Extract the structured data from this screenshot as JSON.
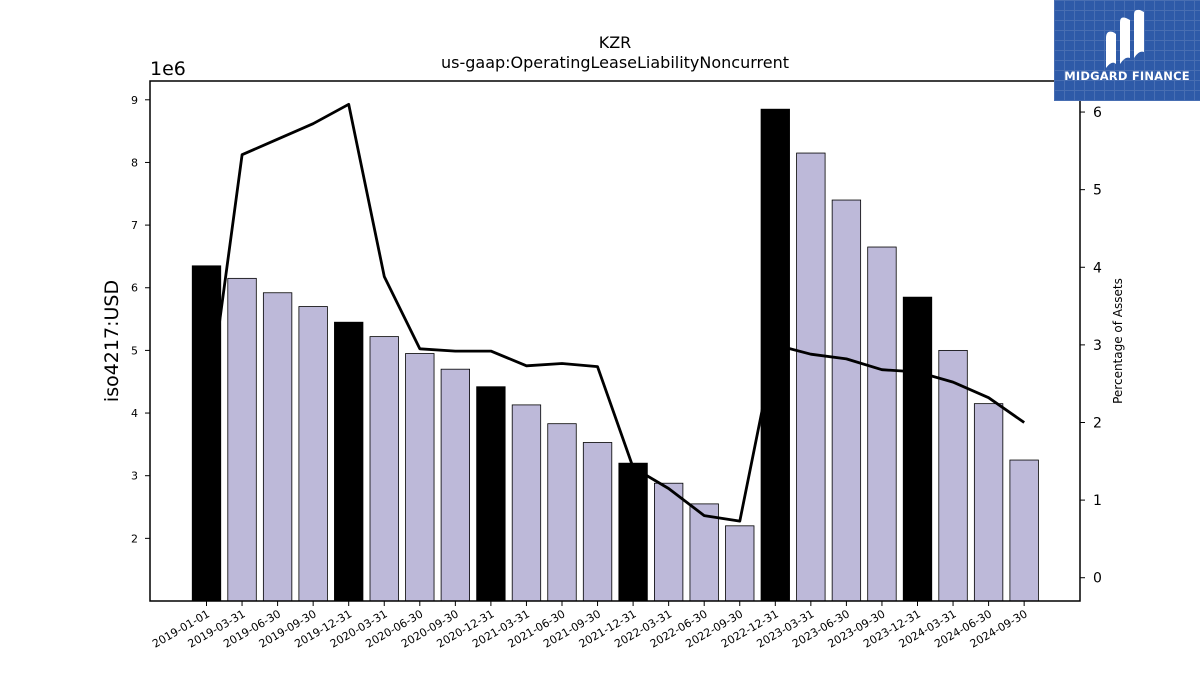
{
  "logo": {
    "text": "MIDGARD FINANCE",
    "icon": "midgard-mark-icon",
    "bg_color": "#2e5aa8"
  },
  "chart_data": {
    "type": "bar",
    "title": "KZR",
    "subtitle": "us-gaap:OperatingLeaseLiabilityNoncurrent",
    "ylabel": "iso4217:USD",
    "y_offset_label": "1e6",
    "y2label": "Percentage of Assets",
    "ylim": [
      1000000,
      9300000
    ],
    "y2lim": [
      -0.3,
      6.4
    ],
    "yticks": [
      2,
      3,
      4,
      5,
      6,
      7,
      8,
      9
    ],
    "y2ticks": [
      0,
      1,
      2,
      3,
      4,
      5,
      6
    ],
    "categories": [
      "2019-01-01",
      "2019-03-31",
      "2019-06-30",
      "2019-09-30",
      "2019-12-31",
      "2020-03-31",
      "2020-06-30",
      "2020-09-30",
      "2020-12-31",
      "2021-03-31",
      "2021-06-30",
      "2021-09-30",
      "2021-12-31",
      "2022-03-31",
      "2022-06-30",
      "2022-09-30",
      "2022-12-31",
      "2023-03-31",
      "2023-06-30",
      "2023-09-30",
      "2023-12-31",
      "2024-03-31",
      "2024-06-30",
      "2024-09-30"
    ],
    "values": [
      6350000,
      6150000,
      5920000,
      5700000,
      5450000,
      5220000,
      4950000,
      4700000,
      4420000,
      4130000,
      3830000,
      3530000,
      3200000,
      2880000,
      2550000,
      2200000,
      8850000,
      8150000,
      7400000,
      6650000,
      5850000,
      5000000,
      4150000,
      3250000
    ],
    "highlight": [
      true,
      false,
      false,
      false,
      true,
      false,
      false,
      false,
      true,
      false,
      false,
      false,
      true,
      false,
      false,
      false,
      true,
      false,
      false,
      false,
      true,
      false,
      false,
      false
    ],
    "line": {
      "name": "Percentage of Assets",
      "values": [
        2.05,
        5.45,
        5.65,
        5.85,
        6.1,
        3.88,
        2.95,
        2.92,
        2.92,
        2.73,
        2.76,
        2.72,
        1.42,
        1.15,
        0.8,
        0.73,
        3.0,
        2.88,
        2.82,
        2.68,
        2.65,
        2.52,
        2.32,
        2.0
      ]
    },
    "colors": {
      "bar": "#bdb9d9",
      "bar_highlight": "#000000",
      "line": "#000000"
    },
    "grid": false,
    "legend": "none"
  }
}
